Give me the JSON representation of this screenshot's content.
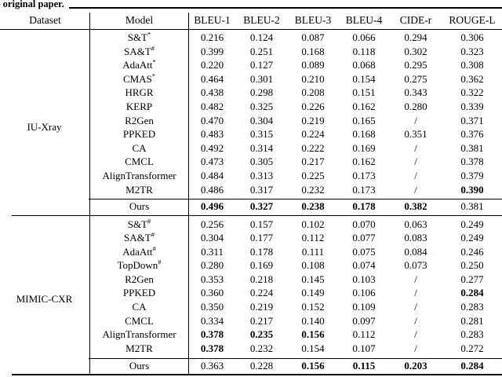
{
  "caption": {
    "text": "e original paper."
  },
  "header": {
    "dataset": "Dataset",
    "model": "Model",
    "metrics": [
      "BLEU-1",
      "BLEU-2",
      "BLEU-3",
      "BLEU-4",
      "CIDE-r",
      "ROUGE-L"
    ]
  },
  "colors": {
    "text": "#000000",
    "rule": "#000000",
    "background": "#ffffff"
  },
  "sections": [
    {
      "dataset": "IU-Xray",
      "rows": [
        {
          "model": "S&T",
          "sup": "*",
          "values": [
            "0.216",
            "0.124",
            "0.087",
            "0.066",
            "0.294",
            "0.306"
          ]
        },
        {
          "model": "SA&T",
          "sup": "#",
          "values": [
            "0.399",
            "0.251",
            "0.168",
            "0.118",
            "0.302",
            "0.323"
          ]
        },
        {
          "model": "AdaAtt",
          "sup": "*",
          "values": [
            "0.220",
            "0.127",
            "0.089",
            "0.068",
            "0.295",
            "0.308"
          ]
        },
        {
          "model": "CMAS",
          "sup": "*",
          "values": [
            "0.464",
            "0.301",
            "0.210",
            "0.154",
            "0.275",
            "0.362"
          ]
        },
        {
          "model": "HRGR",
          "sup": "",
          "values": [
            "0.438",
            "0.298",
            "0.208",
            "0.151",
            "0.343",
            "0.322"
          ]
        },
        {
          "model": "KERP",
          "sup": "",
          "values": [
            "0.482",
            "0.325",
            "0.226",
            "0.162",
            "0.280",
            "0.339"
          ]
        },
        {
          "model": "R2Gen",
          "sup": "",
          "values": [
            "0.470",
            "0.304",
            "0.219",
            "0.165",
            "/",
            "0.371"
          ]
        },
        {
          "model": "PPKED",
          "sup": "",
          "values": [
            "0.483",
            "0.315",
            "0.224",
            "0.168",
            "0.351",
            "0.376"
          ]
        },
        {
          "model": "CA",
          "sup": "",
          "values": [
            "0.492",
            "0.314",
            "0.222",
            "0.169",
            "/",
            "0.381"
          ]
        },
        {
          "model": "CMCL",
          "sup": "",
          "values": [
            "0.473",
            "0.305",
            "0.217",
            "0.162",
            "/",
            "0.378"
          ]
        },
        {
          "model": "AlignTransformer",
          "sup": "",
          "values": [
            "0.484",
            "0.313",
            "0.225",
            "0.173",
            "/",
            "0.379"
          ]
        },
        {
          "model": "M2TR",
          "sup": "",
          "values": [
            "0.486",
            "0.317",
            "0.232",
            "0.173",
            "/",
            "0.390"
          ],
          "bold": [
            0,
            0,
            0,
            0,
            0,
            1
          ]
        }
      ],
      "ours": {
        "model": "Ours",
        "sup": "",
        "values": [
          "0.496",
          "0.327",
          "0.238",
          "0.178",
          "0.382",
          "0.381"
        ],
        "bold": [
          1,
          1,
          1,
          1,
          1,
          0
        ]
      }
    },
    {
      "dataset": "MIMIC-CXR",
      "rows": [
        {
          "model": "S&T",
          "sup": "#",
          "values": [
            "0.256",
            "0.157",
            "0.102",
            "0.070",
            "0.063",
            "0.249"
          ]
        },
        {
          "model": "SA&T",
          "sup": "#",
          "values": [
            "0.304",
            "0.177",
            "0.112",
            "0.077",
            "0.083",
            "0.249"
          ]
        },
        {
          "model": "AdaAtt",
          "sup": "#",
          "values": [
            "0.311",
            "0.178",
            "0.111",
            "0.075",
            "0.084",
            "0.246"
          ]
        },
        {
          "model": "TopDown",
          "sup": "#",
          "values": [
            "0.280",
            "0.169",
            "0.108",
            "0.074",
            "0.073",
            "0.250"
          ]
        },
        {
          "model": "R2Gen",
          "sup": "",
          "values": [
            "0.353",
            "0.218",
            "0.145",
            "0.103",
            "/",
            "0.277"
          ]
        },
        {
          "model": "PPKED",
          "sup": "",
          "values": [
            "0.360",
            "0.224",
            "0.149",
            "0.106",
            "/",
            "0.284"
          ],
          "bold": [
            0,
            0,
            0,
            0,
            0,
            1
          ]
        },
        {
          "model": "CA",
          "sup": "",
          "values": [
            "0.350",
            "0.219",
            "0.152",
            "0.109",
            "/",
            "0.283"
          ]
        },
        {
          "model": "CMCL",
          "sup": "",
          "values": [
            "0.334",
            "0.217",
            "0.140",
            "0.097",
            "/",
            "0.281"
          ]
        },
        {
          "model": "AlignTransformer",
          "sup": "",
          "values": [
            "0.378",
            "0.235",
            "0.156",
            "0.112",
            "/",
            "0.283"
          ],
          "bold": [
            1,
            1,
            1,
            0,
            0,
            0
          ]
        },
        {
          "model": "M2TR",
          "sup": "",
          "values": [
            "0.378",
            "0.232",
            "0.154",
            "0.107",
            "/",
            "0.272"
          ],
          "bold": [
            1,
            0,
            0,
            0,
            0,
            0
          ]
        }
      ],
      "ours": {
        "model": "Ours",
        "sup": "",
        "values": [
          "0.363",
          "0.228",
          "0.156",
          "0.115",
          "0.203",
          "0.284"
        ],
        "bold": [
          0,
          0,
          1,
          1,
          1,
          1
        ]
      }
    }
  ]
}
